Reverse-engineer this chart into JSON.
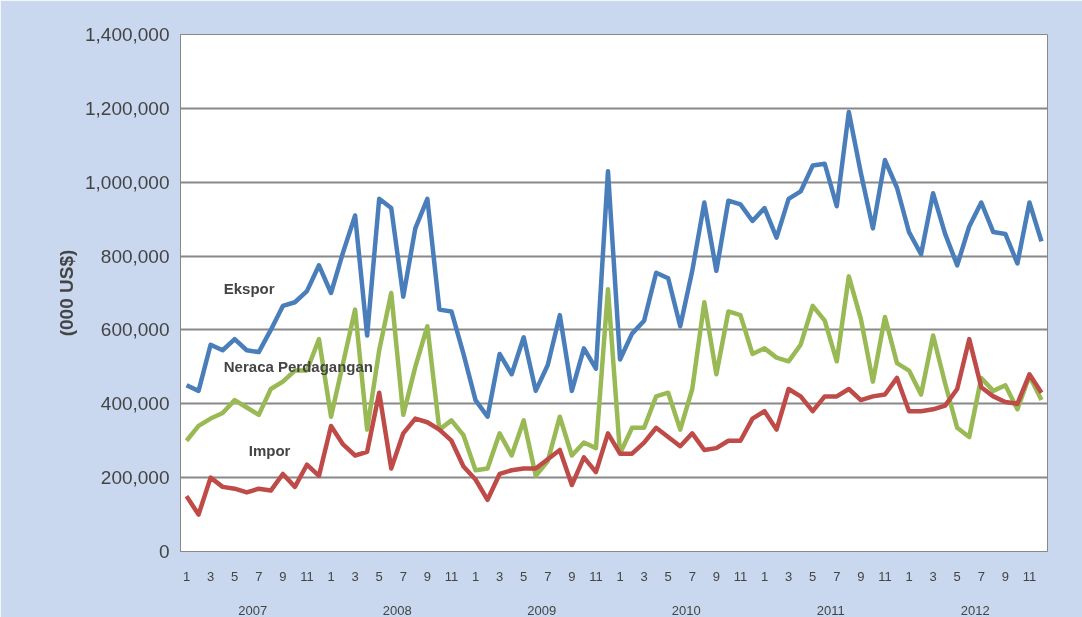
{
  "chart_data": {
    "type": "line",
    "ylabel": "(000 US$)",
    "categories": [
      "1",
      null,
      "3",
      null,
      "5",
      null,
      "7",
      null,
      "9",
      null,
      "11",
      null,
      "1",
      null,
      "3",
      null,
      "5",
      null,
      "7",
      null,
      "9",
      null,
      "11",
      null,
      "1",
      null,
      "3",
      null,
      "5",
      null,
      "7",
      null,
      "9",
      null,
      "11",
      null,
      "1",
      null,
      "3",
      null,
      "5",
      null,
      "7",
      null,
      "9",
      null,
      "11",
      null,
      "1",
      null,
      "3",
      null,
      "5",
      null,
      "7",
      null,
      "9",
      null,
      "11",
      null,
      "1",
      null,
      "3",
      null,
      "5",
      null,
      "7",
      null,
      "9",
      null,
      "11",
      null
    ],
    "annotations": [
      "2007",
      "2008",
      "2009",
      "2010",
      "2011",
      "2012"
    ],
    "ylim": [
      0,
      1400000
    ],
    "yticks": [
      {
        "value": 0,
        "label": "0"
      },
      {
        "value": 200000,
        "label": "200,000"
      },
      {
        "value": 400000,
        "label": "400,000"
      },
      {
        "value": 600000,
        "label": "600,000"
      },
      {
        "value": 800000,
        "label": "800,000"
      },
      {
        "value": 1000000,
        "label": "1,000,000"
      },
      {
        "value": 1200000,
        "label": "1,200,000"
      },
      {
        "value": 1400000,
        "label": "1,400,000"
      }
    ],
    "grid": "y",
    "marker": "none",
    "line_style": "solid",
    "series": [
      {
        "name": "Ekspor",
        "color": "#4a7ebb",
        "values": [
          450000,
          435000,
          560000,
          545000,
          575000,
          545000,
          540000,
          600000,
          665000,
          675000,
          705000,
          775000,
          700000,
          810000,
          910000,
          585000,
          955000,
          930000,
          690000,
          875000,
          955000,
          655000,
          650000,
          535000,
          410000,
          365000,
          535000,
          480000,
          580000,
          435000,
          505000,
          640000,
          435000,
          550000,
          495000,
          1030000,
          520000,
          590000,
          625000,
          755000,
          740000,
          610000,
          760000,
          945000,
          760000,
          950000,
          940000,
          895000,
          930000,
          850000,
          955000,
          975000,
          1045000,
          1050000,
          935000,
          1190000,
          1025000,
          875000,
          1060000,
          985000,
          865000,
          805000,
          970000,
          860000,
          775000,
          880000,
          945000,
          865000,
          860000,
          780000,
          945000,
          840000
        ]
      },
      {
        "name": "Neraca Perdagangan",
        "color": "#98b954",
        "values": [
          300000,
          340000,
          360000,
          375000,
          410000,
          390000,
          370000,
          440000,
          460000,
          490000,
          490000,
          575000,
          365000,
          510000,
          655000,
          330000,
          545000,
          700000,
          370000,
          500000,
          610000,
          330000,
          355000,
          315000,
          220000,
          225000,
          320000,
          260000,
          355000,
          205000,
          245000,
          365000,
          260000,
          295000,
          280000,
          710000,
          265000,
          335000,
          335000,
          420000,
          430000,
          330000,
          440000,
          675000,
          480000,
          650000,
          640000,
          535000,
          550000,
          525000,
          515000,
          560000,
          665000,
          625000,
          515000,
          745000,
          630000,
          460000,
          635000,
          510000,
          490000,
          425000,
          585000,
          455000,
          335000,
          310000,
          470000,
          435000,
          450000,
          385000,
          475000,
          410000
        ]
      },
      {
        "name": "Impor",
        "color": "#be4b48",
        "values": [
          150000,
          100000,
          200000,
          175000,
          170000,
          160000,
          170000,
          165000,
          210000,
          175000,
          235000,
          205000,
          340000,
          290000,
          260000,
          270000,
          430000,
          225000,
          320000,
          360000,
          350000,
          330000,
          300000,
          230000,
          195000,
          140000,
          210000,
          220000,
          225000,
          225000,
          250000,
          275000,
          180000,
          255000,
          215000,
          320000,
          265000,
          265000,
          295000,
          335000,
          310000,
          285000,
          320000,
          275000,
          280000,
          300000,
          300000,
          360000,
          380000,
          330000,
          440000,
          420000,
          380000,
          420000,
          420000,
          440000,
          410000,
          420000,
          425000,
          470000,
          380000,
          380000,
          385000,
          395000,
          440000,
          575000,
          445000,
          420000,
          405000,
          400000,
          480000,
          430000
        ]
      }
    ]
  }
}
